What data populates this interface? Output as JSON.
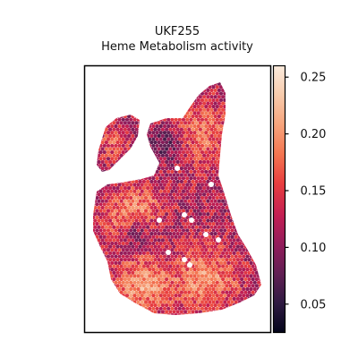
{
  "chart_data": {
    "type": "heatmap",
    "title": "UKF255",
    "subtitle": "Heme Metabolism activity",
    "grid": false,
    "colormap": [
      "#03051a",
      "#2f1a42",
      "#611f53",
      "#921c5b",
      "#c31f53",
      "#e83f3f",
      "#f37651",
      "#f6a47c",
      "#f7cbac",
      "#faebdd"
    ],
    "colorbar": {
      "range": [
        0.025,
        0.26
      ],
      "ticks": [
        0.05,
        0.1,
        0.15,
        0.2,
        0.25
      ],
      "tick_labels": [
        "0.05",
        "0.10",
        "0.15",
        "0.20",
        "0.25"
      ]
    },
    "spot_regions": [
      {
        "name": "upper-left lobe",
        "approx_value": 0.16
      },
      {
        "name": "upper-right lobe",
        "approx_value": 0.17
      },
      {
        "name": "central body",
        "approx_value": 0.15
      },
      {
        "name": "lower body",
        "approx_value": 0.19
      }
    ]
  }
}
